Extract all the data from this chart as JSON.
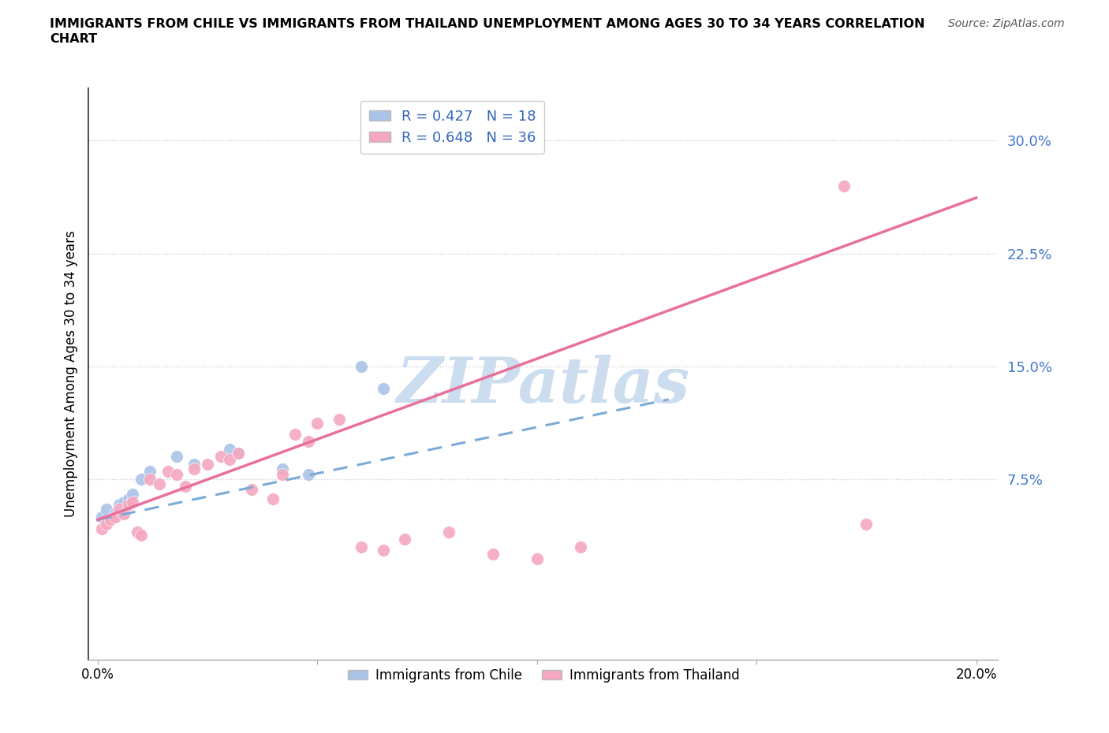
{
  "title_line1": "IMMIGRANTS FROM CHILE VS IMMIGRANTS FROM THAILAND UNEMPLOYMENT AMONG AGES 30 TO 34 YEARS CORRELATION",
  "title_line2": "CHART",
  "source": "Source: ZipAtlas.com",
  "ylabel": "Unemployment Among Ages 30 to 34 years",
  "xlim": [
    -0.002,
    0.205
  ],
  "ylim": [
    -0.045,
    0.335
  ],
  "yticks": [
    0.0,
    0.075,
    0.15,
    0.225,
    0.3
  ],
  "ytick_labels": [
    "",
    "7.5%",
    "15.0%",
    "22.5%",
    "30.0%"
  ],
  "xticks": [
    0.0,
    0.05,
    0.1,
    0.15,
    0.2
  ],
  "xtick_labels": [
    "0.0%",
    "",
    "",
    "",
    "20.0%"
  ],
  "chile_R": 0.427,
  "chile_N": 18,
  "thailand_R": 0.648,
  "thailand_N": 36,
  "chile_color": "#aac4e8",
  "thailand_color": "#f5a8c0",
  "chile_line_color": "#7aaad8",
  "thailand_line_color": "#e8709a",
  "watermark": "ZIPatlas",
  "watermark_color": "#ccddf0",
  "chile_x": [
    0.001,
    0.002,
    0.003,
    0.004,
    0.005,
    0.006,
    0.007,
    0.008,
    0.01,
    0.012,
    0.018,
    0.022,
    0.03,
    0.032,
    0.06,
    0.065,
    0.042,
    0.048
  ],
  "chile_y": [
    0.05,
    0.055,
    0.048,
    0.052,
    0.058,
    0.06,
    0.062,
    0.065,
    0.075,
    0.08,
    0.09,
    0.085,
    0.095,
    0.092,
    0.15,
    0.135,
    0.082,
    0.078
  ],
  "thailand_x": [
    0.001,
    0.002,
    0.003,
    0.004,
    0.005,
    0.006,
    0.007,
    0.008,
    0.009,
    0.01,
    0.012,
    0.014,
    0.016,
    0.018,
    0.02,
    0.022,
    0.025,
    0.028,
    0.03,
    0.032,
    0.035,
    0.04,
    0.042,
    0.045,
    0.048,
    0.05,
    0.055,
    0.06,
    0.065,
    0.07,
    0.08,
    0.09,
    0.1,
    0.11,
    0.17,
    0.175
  ],
  "thailand_y": [
    0.042,
    0.045,
    0.048,
    0.05,
    0.055,
    0.052,
    0.058,
    0.06,
    0.04,
    0.038,
    0.075,
    0.072,
    0.08,
    0.078,
    0.07,
    0.082,
    0.085,
    0.09,
    0.088,
    0.092,
    0.068,
    0.062,
    0.078,
    0.105,
    0.1,
    0.112,
    0.115,
    0.03,
    0.028,
    0.035,
    0.04,
    0.025,
    0.022,
    0.03,
    0.27,
    0.045
  ],
  "chile_trend_x": [
    0.0,
    0.13
  ],
  "chile_trend_y": [
    0.048,
    0.128
  ],
  "thailand_trend_x": [
    0.0,
    0.2
  ],
  "thailand_trend_y": [
    0.048,
    0.262
  ]
}
